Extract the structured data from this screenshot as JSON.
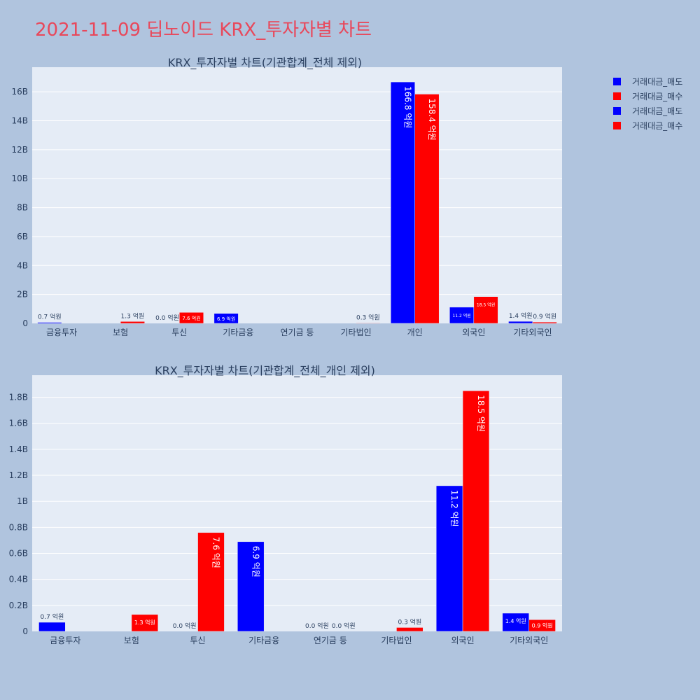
{
  "page_title": "2021-11-09 딥노이드 KRX_투자자별 차트",
  "legend": [
    {
      "label": "거래대금_매도",
      "color": "#0000ff"
    },
    {
      "label": "거래대금_매수",
      "color": "#ff0000"
    },
    {
      "label": "거래대금_매도",
      "color": "#0000ff"
    },
    {
      "label": "거래대금_매수",
      "color": "#ff0000"
    }
  ],
  "chart_data": [
    {
      "type": "bar",
      "title": "KRX_투자자별 차트(기관합계_전체 제외)",
      "categories": [
        "금융투자",
        "보험",
        "투신",
        "기타금융",
        "연기금 등",
        "기타법인",
        "개인",
        "외국인",
        "기타외국인"
      ],
      "series": [
        {
          "name": "거래대금_매도",
          "color": "#0000ff",
          "values": [
            70000000,
            0,
            0,
            690000000,
            0,
            0,
            16680000000,
            1120000000,
            140000000
          ],
          "labels": [
            "0.7 억원",
            "",
            "0.0 억원",
            "6.9 억원",
            "",
            "",
            "166.8 억원",
            "11.2 억원",
            "1.4 억원"
          ]
        },
        {
          "name": "거래대금_매수",
          "color": "#ff0000",
          "values": [
            0,
            130000000,
            760000000,
            0,
            0,
            30000000,
            15840000000,
            1850000000,
            90000000
          ],
          "labels": [
            "",
            "1.3 억원",
            "7.6 억원",
            "",
            "",
            "0.3 억원",
            "158.4 억원",
            "18.5 억원",
            "0.9 억원"
          ]
        }
      ],
      "ylim": [
        0,
        17700000000
      ],
      "yticks": [
        0,
        2000000000,
        4000000000,
        6000000000,
        8000000000,
        10000000000,
        12000000000,
        14000000000,
        16000000000
      ],
      "ytick_labels": [
        "0",
        "2B",
        "4B",
        "6B",
        "8B",
        "10B",
        "12B",
        "14B",
        "16B"
      ],
      "grid": true
    },
    {
      "type": "bar",
      "title": "KRX_투자자별 차트(기관합계_전체_개인 제외)",
      "categories": [
        "금융투자",
        "보험",
        "투신",
        "기타금융",
        "연기금 등",
        "기타법인",
        "외국인",
        "기타외국인"
      ],
      "series": [
        {
          "name": "거래대금_매도",
          "color": "#0000ff",
          "values": [
            70000000,
            0,
            0,
            690000000,
            0,
            0,
            1120000000,
            140000000
          ],
          "labels": [
            "0.7 억원",
            "",
            "0.0 억원",
            "6.9 억원",
            "0.0 억원",
            "",
            "11.2 억원",
            "1.4 억원"
          ]
        },
        {
          "name": "거래대금_매수",
          "color": "#ff0000",
          "values": [
            0,
            130000000,
            760000000,
            0,
            0,
            30000000,
            1850000000,
            90000000
          ],
          "labels": [
            "",
            "1.3 억원",
            "7.6 억원",
            "",
            "0.0 억원",
            "0.3 억원",
            "18.5 억원",
            "0.9 억원"
          ]
        }
      ],
      "ylim": [
        0,
        1970000000
      ],
      "yticks": [
        0,
        200000000,
        400000000,
        600000000,
        800000000,
        1000000000,
        1200000000,
        1400000000,
        1600000000,
        1800000000
      ],
      "ytick_labels": [
        "0",
        "0.2B",
        "0.4B",
        "0.6B",
        "0.8B",
        "1B",
        "1.2B",
        "1.4B",
        "1.6B",
        "1.8B"
      ],
      "grid": true
    }
  ]
}
